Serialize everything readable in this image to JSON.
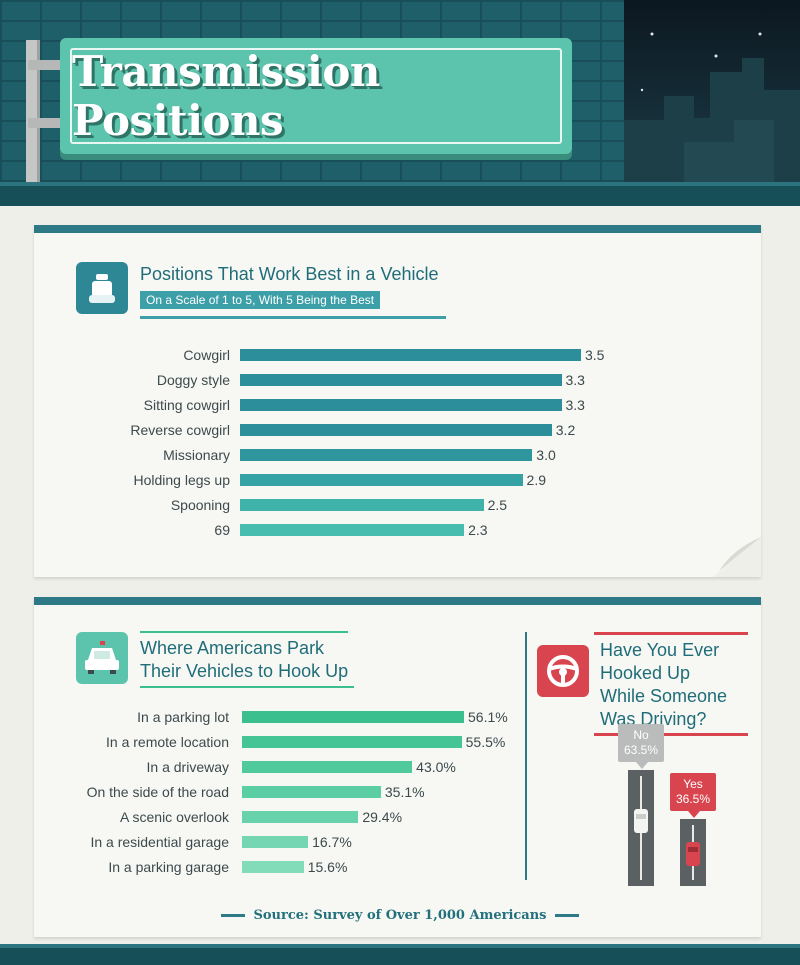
{
  "title": "Transmission Positions",
  "chart_data": [
    {
      "type": "bar",
      "orientation": "horizontal",
      "title": "Positions That Work Best in a Vehicle",
      "subtitle": "On a Scale of 1 to 5, With 5 Being the Best",
      "categories": [
        "Cowgirl",
        "Doggy style",
        "Sitting cowgirl",
        "Reverse cowgirl",
        "Missionary",
        "Holding legs up",
        "Spooning",
        "69"
      ],
      "values": [
        3.5,
        3.3,
        3.3,
        3.2,
        3.0,
        2.9,
        2.5,
        2.3
      ],
      "value_labels": [
        "3.5",
        "3.3",
        "3.3",
        "3.2",
        "3.0",
        "2.9",
        "2.5",
        "2.3"
      ],
      "xlim": [
        0,
        3.5
      ],
      "colors": [
        "#2b8e9a",
        "#2b8e9a",
        "#2b8e9a",
        "#2b8e9a",
        "#2f969e",
        "#35a3a4",
        "#3fb2aa",
        "#47bdb0"
      ]
    },
    {
      "type": "bar",
      "orientation": "horizontal",
      "title_lines": [
        "Where Americans Park",
        "Their Vehicles to Hook Up"
      ],
      "categories": [
        "In a parking lot",
        "In a remote location",
        "In a driveway",
        "On the side of the road",
        "A scenic overlook",
        "In a residential garage",
        "In a parking garage"
      ],
      "values": [
        56.1,
        55.5,
        43.0,
        35.1,
        29.4,
        16.7,
        15.6
      ],
      "value_labels": [
        "56.1%",
        "55.5%",
        "43.0%",
        "35.1%",
        "29.4%",
        "16.7%",
        "15.6%"
      ],
      "xlim": [
        0,
        56.1
      ],
      "colors": [
        "#3cbf8e",
        "#45c496",
        "#50c99d",
        "#5ccea5",
        "#68d2ac",
        "#75d6b3",
        "#82dbb9"
      ]
    },
    {
      "type": "bar",
      "title_lines": [
        "Have You Ever",
        "Hooked Up",
        "While Someone",
        "Was Driving?"
      ],
      "categories": [
        "No",
        "Yes"
      ],
      "values": [
        63.5,
        36.5
      ],
      "value_labels": [
        "63.5%",
        "36.5%"
      ],
      "colors": [
        "#b9bcbb",
        "#d9454e"
      ]
    }
  ],
  "source": "Source: Survey of Over 1,000 Americans"
}
